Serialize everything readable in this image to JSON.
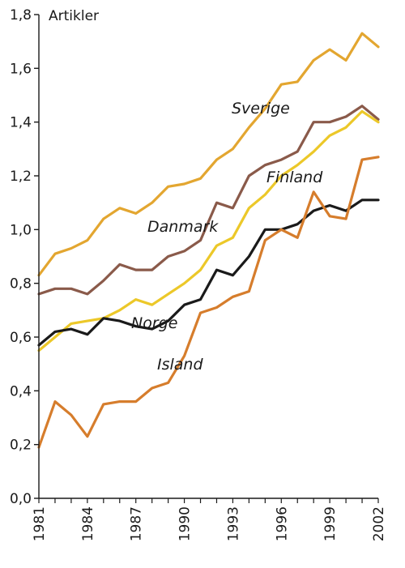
{
  "chart_data": {
    "type": "line",
    "ylabel": "Artikler",
    "ylim": [
      0,
      1.8
    ],
    "yticks": [
      "0,0",
      "0,2",
      "0,4",
      "0,6",
      "0,8",
      "1,0",
      "1,2",
      "1,4",
      "1,6",
      "1,8"
    ],
    "xlim": [
      1981,
      2002
    ],
    "xticks": [
      "1981",
      "1984",
      "1987",
      "1990",
      "1993",
      "1996",
      "1999",
      "2002"
    ],
    "grid": false,
    "legend": "inline labels",
    "x": [
      1981,
      1982,
      1983,
      1984,
      1985,
      1986,
      1987,
      1988,
      1989,
      1990,
      1991,
      1992,
      1993,
      1994,
      1995,
      1996,
      1997,
      1998,
      1999,
      2000,
      2001,
      2002
    ],
    "series": [
      {
        "name": "Sverige",
        "color": "#e3a630",
        "values": [
          0.83,
          0.91,
          0.93,
          0.96,
          1.04,
          1.08,
          1.06,
          1.1,
          1.16,
          1.17,
          1.19,
          1.26,
          1.3,
          1.38,
          1.45,
          1.54,
          1.55,
          1.63,
          1.67,
          1.63,
          1.73,
          1.68
        ]
      },
      {
        "name": "Danmark",
        "color": "#8a5a4a",
        "values": [
          0.76,
          0.78,
          0.78,
          0.76,
          0.81,
          0.87,
          0.85,
          0.85,
          0.9,
          0.92,
          0.96,
          1.1,
          1.08,
          1.2,
          1.24,
          1.26,
          1.29,
          1.4,
          1.4,
          1.42,
          1.46,
          1.41
        ]
      },
      {
        "name": "Finland",
        "color": "#ecc829",
        "values": [
          0.55,
          0.6,
          0.65,
          0.66,
          0.67,
          0.7,
          0.74,
          0.72,
          0.76,
          0.8,
          0.85,
          0.94,
          0.97,
          1.08,
          1.13,
          1.2,
          1.24,
          1.29,
          1.35,
          1.38,
          1.44,
          1.4
        ]
      },
      {
        "name": "Norge",
        "color": "#1a1a1a",
        "values": [
          0.57,
          0.62,
          0.63,
          0.61,
          0.67,
          0.66,
          0.64,
          0.63,
          0.66,
          0.72,
          0.74,
          0.85,
          0.83,
          0.9,
          1.0,
          1.0,
          1.02,
          1.07,
          1.09,
          1.07,
          1.11,
          1.11
        ]
      },
      {
        "name": "Island",
        "color": "#d67d2c",
        "values": [
          0.19,
          0.36,
          0.31,
          0.23,
          0.35,
          0.36,
          0.36,
          0.41,
          0.43,
          0.53,
          0.69,
          0.71,
          0.75,
          0.77,
          0.96,
          1.0,
          0.97,
          1.14,
          1.05,
          1.04,
          1.26,
          1.27
        ]
      }
    ]
  }
}
